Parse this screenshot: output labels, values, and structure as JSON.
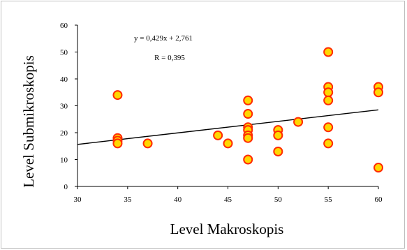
{
  "chart_data": {
    "type": "scatter",
    "title": "",
    "xlabel": "Level Makroskopis",
    "ylabel": "Level Submikroskopis",
    "xlim": [
      30,
      60
    ],
    "ylim": [
      0,
      60
    ],
    "x_ticks": [
      "30",
      "35",
      "40",
      "45",
      "50",
      "55",
      "60"
    ],
    "y_ticks": [
      "0",
      "10",
      "20",
      "30",
      "40",
      "50",
      "60"
    ],
    "grid": false,
    "legend": "none",
    "annotations": {
      "equation": "y = 0,429x + 2,761",
      "r_value": "R = 0,395"
    },
    "trendline": {
      "slope": 0.429,
      "intercept": 2.761,
      "x_range": [
        30,
        60
      ]
    },
    "marker_fill": "#ffd700",
    "marker_stroke": "#ff2a00",
    "trendline_color": "#000000",
    "points": [
      {
        "x": 34,
        "y": 34
      },
      {
        "x": 34,
        "y": 18
      },
      {
        "x": 34,
        "y": 17
      },
      {
        "x": 34,
        "y": 16
      },
      {
        "x": 37,
        "y": 16
      },
      {
        "x": 44,
        "y": 19
      },
      {
        "x": 45,
        "y": 16
      },
      {
        "x": 47,
        "y": 32
      },
      {
        "x": 47,
        "y": 27
      },
      {
        "x": 47,
        "y": 22
      },
      {
        "x": 47,
        "y": 21
      },
      {
        "x": 47,
        "y": 19
      },
      {
        "x": 47,
        "y": 18
      },
      {
        "x": 47,
        "y": 10
      },
      {
        "x": 50,
        "y": 21
      },
      {
        "x": 50,
        "y": 19
      },
      {
        "x": 50,
        "y": 13
      },
      {
        "x": 52,
        "y": 24
      },
      {
        "x": 55,
        "y": 50
      },
      {
        "x": 55,
        "y": 37
      },
      {
        "x": 55,
        "y": 35
      },
      {
        "x": 55,
        "y": 32
      },
      {
        "x": 55,
        "y": 22
      },
      {
        "x": 55,
        "y": 16
      },
      {
        "x": 60,
        "y": 37
      },
      {
        "x": 60,
        "y": 35
      },
      {
        "x": 60,
        "y": 7
      }
    ]
  }
}
